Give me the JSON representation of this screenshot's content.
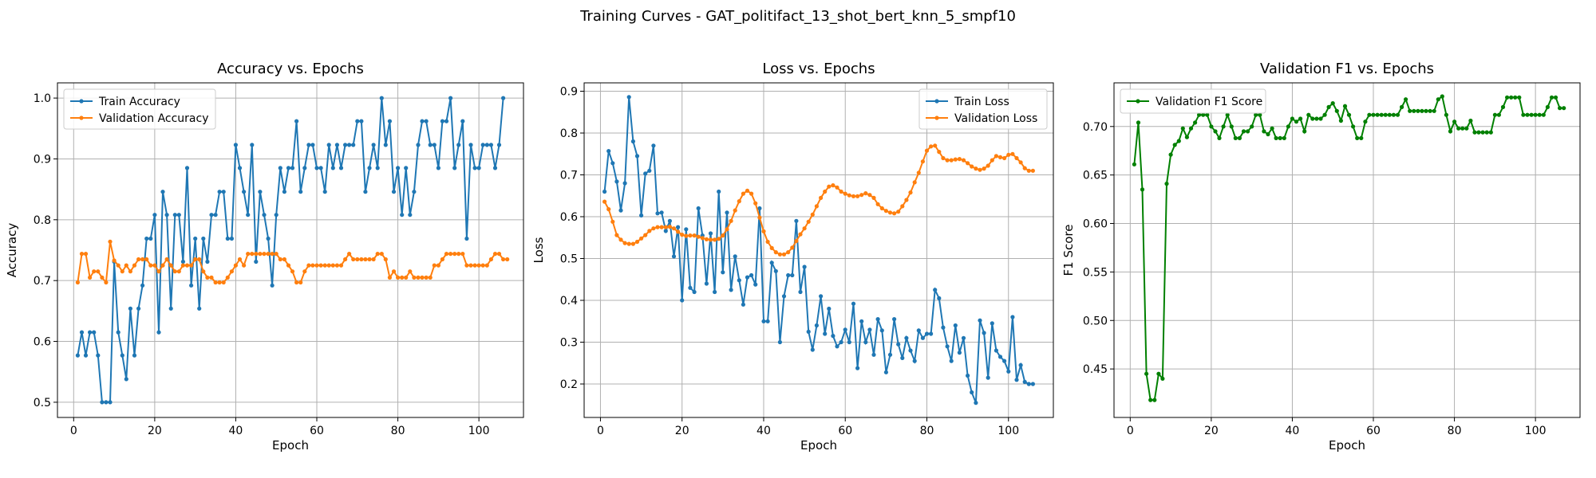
{
  "figure": {
    "suptitle": "Training Curves - GAT_politifact_13_shot_bert_knn_5_smpf10"
  },
  "chart_data": [
    {
      "type": "line",
      "title": "Accuracy vs. Epochs",
      "xlabel": "Epoch",
      "ylabel": "Accuracy",
      "xlim": [
        -4,
        111
      ],
      "ylim": [
        0.475,
        1.025
      ],
      "xticks": [
        0,
        20,
        40,
        60,
        80,
        100
      ],
      "yticks": [
        0.5,
        0.6,
        0.7,
        0.8,
        0.9,
        1.0
      ],
      "ytick_labels": [
        "0.5",
        "0.6",
        "0.7",
        "0.8",
        "0.9",
        "1.0"
      ],
      "grid": true,
      "legend": "upper-left",
      "x_start": 1,
      "series": [
        {
          "name": "Train Accuracy",
          "color": "#1f77b4",
          "values": [
            0.577,
            0.615,
            0.577,
            0.615,
            0.615,
            0.577,
            0.5,
            0.5,
            0.5,
            0.731,
            0.615,
            0.577,
            0.538,
            0.654,
            0.577,
            0.654,
            0.692,
            0.769,
            0.769,
            0.808,
            0.615,
            0.846,
            0.808,
            0.654,
            0.808,
            0.808,
            0.731,
            0.885,
            0.692,
            0.769,
            0.654,
            0.769,
            0.731,
            0.808,
            0.808,
            0.846,
            0.846,
            0.769,
            0.769,
            0.923,
            0.885,
            0.846,
            0.808,
            0.923,
            0.731,
            0.846,
            0.808,
            0.769,
            0.692,
            0.808,
            0.885,
            0.846,
            0.885,
            0.885,
            0.962,
            0.846,
            0.885,
            0.923,
            0.923,
            0.885,
            0.885,
            0.846,
            0.923,
            0.885,
            0.923,
            0.885,
            0.923,
            0.923,
            0.923,
            0.962,
            0.962,
            0.846,
            0.885,
            0.923,
            0.885,
            1.0,
            0.923,
            0.962,
            0.846,
            0.885,
            0.808,
            0.885,
            0.808,
            0.846,
            0.923,
            0.962,
            0.962,
            0.923,
            0.923,
            0.885,
            0.962,
            0.962,
            1.0,
            0.885,
            0.923,
            0.962,
            0.769,
            0.923,
            0.885,
            0.885,
            0.923,
            0.923,
            0.923,
            0.885,
            0.923,
            1.0
          ]
        },
        {
          "name": "Validation Accuracy",
          "color": "#ff7f0e",
          "values": [
            0.697,
            0.744,
            0.744,
            0.705,
            0.715,
            0.715,
            0.705,
            0.697,
            0.764,
            0.733,
            0.725,
            0.715,
            0.725,
            0.715,
            0.725,
            0.735,
            0.735,
            0.735,
            0.725,
            0.725,
            0.715,
            0.725,
            0.735,
            0.725,
            0.715,
            0.715,
            0.725,
            0.725,
            0.725,
            0.735,
            0.735,
            0.715,
            0.705,
            0.705,
            0.697,
            0.697,
            0.697,
            0.705,
            0.715,
            0.725,
            0.735,
            0.725,
            0.744,
            0.744,
            0.744,
            0.744,
            0.744,
            0.744,
            0.744,
            0.744,
            0.735,
            0.735,
            0.725,
            0.715,
            0.697,
            0.697,
            0.715,
            0.725,
            0.725,
            0.725,
            0.725,
            0.725,
            0.725,
            0.725,
            0.725,
            0.725,
            0.735,
            0.744,
            0.735,
            0.735,
            0.735,
            0.735,
            0.735,
            0.735,
            0.744,
            0.744,
            0.735,
            0.705,
            0.715,
            0.705,
            0.705,
            0.705,
            0.715,
            0.705,
            0.705,
            0.705,
            0.705,
            0.705,
            0.725,
            0.725,
            0.735,
            0.744,
            0.744,
            0.744,
            0.744,
            0.744,
            0.725,
            0.725,
            0.725,
            0.725,
            0.725,
            0.725,
            0.735,
            0.744,
            0.744,
            0.735,
            0.735
          ]
        }
      ]
    },
    {
      "type": "line",
      "title": "Loss vs. Epochs",
      "xlabel": "Epoch",
      "ylabel": "Loss",
      "xlim": [
        -4,
        111
      ],
      "ylim": [
        0.12,
        0.92
      ],
      "xticks": [
        0,
        20,
        40,
        60,
        80,
        100
      ],
      "yticks": [
        0.2,
        0.3,
        0.4,
        0.5,
        0.6,
        0.7,
        0.8,
        0.9
      ],
      "ytick_labels": [
        "0.2",
        "0.3",
        "0.4",
        "0.5",
        "0.6",
        "0.7",
        "0.8",
        "0.9"
      ],
      "grid": true,
      "legend": "upper-right",
      "x_start": 1,
      "series": [
        {
          "name": "Train Loss",
          "color": "#1f77b4",
          "values": [
            0.66,
            0.757,
            0.728,
            0.684,
            0.615,
            0.68,
            0.886,
            0.78,
            0.745,
            0.603,
            0.703,
            0.71,
            0.77,
            0.608,
            0.61,
            0.566,
            0.59,
            0.505,
            0.575,
            0.4,
            0.57,
            0.43,
            0.42,
            0.62,
            0.555,
            0.44,
            0.56,
            0.42,
            0.66,
            0.467,
            0.61,
            0.425,
            0.505,
            0.448,
            0.39,
            0.455,
            0.46,
            0.438,
            0.62,
            0.35,
            0.35,
            0.49,
            0.47,
            0.3,
            0.41,
            0.46,
            0.46,
            0.59,
            0.42,
            0.48,
            0.325,
            0.282,
            0.34,
            0.41,
            0.32,
            0.38,
            0.315,
            0.29,
            0.3,
            0.33,
            0.3,
            0.392,
            0.238,
            0.35,
            0.3,
            0.33,
            0.27,
            0.355,
            0.328,
            0.228,
            0.27,
            0.355,
            0.295,
            0.262,
            0.31,
            0.28,
            0.255,
            0.328,
            0.31,
            0.32,
            0.32,
            0.425,
            0.405,
            0.335,
            0.29,
            0.255,
            0.34,
            0.275,
            0.31,
            0.22,
            0.18,
            0.155,
            0.352,
            0.322,
            0.215,
            0.345,
            0.28,
            0.265,
            0.255,
            0.23,
            0.36,
            0.21,
            0.245,
            0.205,
            0.2,
            0.2
          ]
        },
        {
          "name": "Validation Loss",
          "color": "#ff7f0e",
          "values": [
            0.636,
            0.618,
            0.588,
            0.556,
            0.545,
            0.537,
            0.535,
            0.535,
            0.54,
            0.548,
            0.556,
            0.566,
            0.572,
            0.575,
            0.575,
            0.575,
            0.576,
            0.572,
            0.564,
            0.557,
            0.554,
            0.555,
            0.555,
            0.552,
            0.549,
            0.546,
            0.545,
            0.545,
            0.547,
            0.555,
            0.57,
            0.59,
            0.615,
            0.637,
            0.655,
            0.662,
            0.655,
            0.632,
            0.598,
            0.565,
            0.54,
            0.525,
            0.515,
            0.51,
            0.51,
            0.515,
            0.526,
            0.542,
            0.558,
            0.572,
            0.588,
            0.605,
            0.625,
            0.645,
            0.66,
            0.672,
            0.675,
            0.67,
            0.66,
            0.655,
            0.651,
            0.649,
            0.649,
            0.652,
            0.656,
            0.652,
            0.645,
            0.63,
            0.62,
            0.614,
            0.61,
            0.608,
            0.612,
            0.625,
            0.64,
            0.658,
            0.682,
            0.705,
            0.732,
            0.758,
            0.768,
            0.77,
            0.755,
            0.74,
            0.735,
            0.735,
            0.737,
            0.738,
            0.735,
            0.728,
            0.72,
            0.715,
            0.712,
            0.715,
            0.722,
            0.735,
            0.745,
            0.742,
            0.74,
            0.748,
            0.75,
            0.74,
            0.73,
            0.716,
            0.71,
            0.71
          ]
        }
      ]
    },
    {
      "type": "line",
      "title": "Validation F1 vs. Epochs",
      "xlabel": "Epoch",
      "ylabel": "F1 Score",
      "xlim": [
        -4,
        111
      ],
      "ylim": [
        0.4,
        0.745
      ],
      "xticks": [
        0,
        20,
        40,
        60,
        80,
        100
      ],
      "yticks": [
        0.45,
        0.5,
        0.55,
        0.6,
        0.65,
        0.7
      ],
      "ytick_labels": [
        "0.45",
        "0.50",
        "0.55",
        "0.60",
        "0.65",
        "0.70"
      ],
      "grid": true,
      "legend": "upper-left",
      "x_start": 1,
      "series": [
        {
          "name": "Validation F1 Score",
          "color": "#008000",
          "values": [
            0.661,
            0.704,
            0.635,
            0.445,
            0.418,
            0.418,
            0.445,
            0.44,
            0.641,
            0.671,
            0.681,
            0.685,
            0.698,
            0.689,
            0.698,
            0.704,
            0.712,
            0.712,
            0.712,
            0.7,
            0.695,
            0.688,
            0.7,
            0.712,
            0.7,
            0.688,
            0.688,
            0.695,
            0.695,
            0.7,
            0.712,
            0.712,
            0.695,
            0.692,
            0.698,
            0.688,
            0.688,
            0.688,
            0.7,
            0.708,
            0.705,
            0.708,
            0.695,
            0.712,
            0.708,
            0.708,
            0.708,
            0.712,
            0.72,
            0.724,
            0.716,
            0.706,
            0.721,
            0.712,
            0.7,
            0.688,
            0.688,
            0.705,
            0.712,
            0.712,
            0.712,
            0.712,
            0.712,
            0.712,
            0.712,
            0.712,
            0.72,
            0.728,
            0.716,
            0.716,
            0.716,
            0.716,
            0.716,
            0.716,
            0.716,
            0.728,
            0.731,
            0.712,
            0.695,
            0.705,
            0.698,
            0.698,
            0.698,
            0.706,
            0.694,
            0.694,
            0.694,
            0.694,
            0.694,
            0.712,
            0.712,
            0.72,
            0.73,
            0.73,
            0.73,
            0.73,
            0.712,
            0.712,
            0.712,
            0.712,
            0.712,
            0.712,
            0.72,
            0.73,
            0.73,
            0.719,
            0.719
          ]
        }
      ]
    }
  ]
}
